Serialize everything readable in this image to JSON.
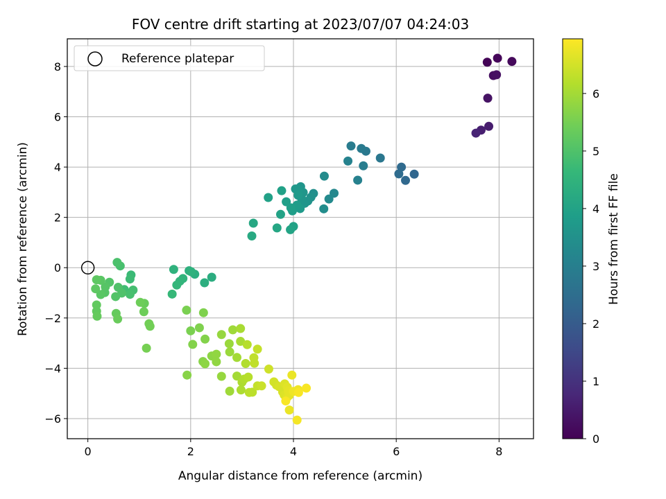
{
  "chart_data": {
    "type": "scatter",
    "title": "FOV centre drift starting at 2023/07/07 04:24:03",
    "xlabel": "Angular distance from reference (arcmin)",
    "ylabel": "Rotation from reference (arcmin)",
    "xlim": [
      -0.4,
      8.67
    ],
    "ylim": [
      -6.8,
      9.1
    ],
    "xticks": [
      0,
      2,
      4,
      6,
      8
    ],
    "yticks": [
      -6,
      -4,
      -2,
      0,
      2,
      4,
      6,
      8
    ],
    "grid": true,
    "legend_position": "top-left",
    "colormap": "viridis",
    "colorbar": {
      "label": "Hours from first FF file",
      "range": [
        0,
        6.95
      ],
      "ticks": [
        0,
        1,
        2,
        3,
        4,
        5,
        6
      ]
    },
    "reference": {
      "name": "Reference platepar",
      "x": 0,
      "y": 0
    },
    "series": [
      {
        "points": [
          [
            7.77,
            8.17,
            0.05
          ],
          [
            7.97,
            8.33,
            0.1
          ],
          [
            8.25,
            8.2,
            0.15
          ],
          [
            7.89,
            7.64,
            0.25
          ],
          [
            7.95,
            7.67,
            0.3
          ],
          [
            7.78,
            6.74,
            0.35
          ],
          [
            7.8,
            5.62,
            0.55
          ],
          [
            7.65,
            5.47,
            0.6
          ],
          [
            7.55,
            5.35,
            0.7
          ],
          [
            6.35,
            3.72,
            2.3
          ],
          [
            6.18,
            3.47,
            2.35
          ],
          [
            6.1,
            4.0,
            2.4
          ],
          [
            6.05,
            3.73,
            2.45
          ],
          [
            5.69,
            4.36,
            2.75
          ],
          [
            5.41,
            4.63,
            2.8
          ],
          [
            5.32,
            4.74,
            2.85
          ],
          [
            5.12,
            4.84,
            2.9
          ],
          [
            5.36,
            4.05,
            2.95
          ],
          [
            5.25,
            3.48,
            3.05
          ],
          [
            5.06,
            4.24,
            3.1
          ],
          [
            4.79,
            2.96,
            3.25
          ],
          [
            4.69,
            2.73,
            3.3
          ],
          [
            4.6,
            3.64,
            3.35
          ],
          [
            4.59,
            2.34,
            3.4
          ],
          [
            4.39,
            2.95,
            3.45
          ],
          [
            4.34,
            2.8,
            3.5
          ],
          [
            4.28,
            2.65,
            3.55
          ],
          [
            4.22,
            2.56,
            3.6
          ],
          [
            4.14,
            3.22,
            3.6
          ],
          [
            4.19,
            2.99,
            3.65
          ],
          [
            4.16,
            2.74,
            3.65
          ],
          [
            4.1,
            3.1,
            3.7
          ],
          [
            4.04,
            3.13,
            3.7
          ],
          [
            4.09,
            2.88,
            3.75
          ],
          [
            4.13,
            2.35,
            3.75
          ],
          [
            4.07,
            2.49,
            3.8
          ],
          [
            3.98,
            2.26,
            3.85
          ],
          [
            3.95,
            2.38,
            3.9
          ],
          [
            3.86,
            2.62,
            3.9
          ],
          [
            3.77,
            3.06,
            3.95
          ],
          [
            3.75,
            2.12,
            4.0
          ],
          [
            3.51,
            2.79,
            3.95
          ],
          [
            4.0,
            1.64,
            4.0
          ],
          [
            3.94,
            1.51,
            4.05
          ],
          [
            3.68,
            1.58,
            4.1
          ],
          [
            3.22,
            1.77,
            4.15
          ],
          [
            3.19,
            1.26,
            4.2
          ],
          [
            2.41,
            -0.38,
            4.3
          ],
          [
            2.27,
            -0.6,
            4.35
          ],
          [
            2.08,
            -0.26,
            4.35
          ],
          [
            1.97,
            -0.12,
            4.4
          ],
          [
            2.01,
            -0.16,
            4.45
          ],
          [
            1.67,
            -0.07,
            4.45
          ],
          [
            1.85,
            -0.43,
            4.5
          ],
          [
            1.79,
            -0.54,
            4.55
          ],
          [
            1.73,
            -0.69,
            4.6
          ],
          [
            1.64,
            -1.05,
            4.65
          ],
          [
            0.84,
            -0.29,
            4.7
          ],
          [
            0.82,
            -0.45,
            4.75
          ],
          [
            0.71,
            -0.87,
            4.8
          ],
          [
            0.88,
            -0.89,
            4.85
          ],
          [
            0.82,
            -1.06,
            4.9
          ],
          [
            0.63,
            0.07,
            4.9
          ],
          [
            0.57,
            0.21,
            4.95
          ],
          [
            0.59,
            -0.78,
            5.0
          ],
          [
            0.66,
            -1.01,
            5.0
          ],
          [
            0.54,
            -1.15,
            5.05
          ],
          [
            0.42,
            -0.58,
            5.05
          ],
          [
            0.34,
            -0.76,
            5.1
          ],
          [
            0.33,
            -0.99,
            5.1
          ],
          [
            0.25,
            -1.07,
            5.15
          ],
          [
            0.25,
            -0.5,
            5.15
          ],
          [
            0.15,
            -0.84,
            5.2
          ],
          [
            0.17,
            -0.48,
            5.2
          ],
          [
            0.17,
            -1.48,
            5.25
          ],
          [
            0.17,
            -1.73,
            5.25
          ],
          [
            0.18,
            -1.93,
            5.3
          ],
          [
            0.55,
            -1.82,
            5.3
          ],
          [
            0.58,
            -2.04,
            5.35
          ],
          [
            1.1,
            -1.42,
            5.35
          ],
          [
            1.02,
            -1.38,
            5.4
          ],
          [
            1.09,
            -1.75,
            5.4
          ],
          [
            1.19,
            -2.23,
            5.45
          ],
          [
            1.21,
            -2.33,
            5.45
          ],
          [
            1.14,
            -3.2,
            5.5
          ],
          [
            1.92,
            -1.69,
            5.55
          ],
          [
            2.0,
            -2.51,
            5.55
          ],
          [
            2.17,
            -2.39,
            5.6
          ],
          [
            2.25,
            -1.79,
            5.6
          ],
          [
            2.28,
            -2.84,
            5.65
          ],
          [
            2.04,
            -3.05,
            5.65
          ],
          [
            1.93,
            -4.27,
            5.7
          ],
          [
            2.24,
            -3.73,
            5.7
          ],
          [
            2.28,
            -3.82,
            5.75
          ],
          [
            2.41,
            -3.51,
            5.75
          ],
          [
            2.5,
            -3.44,
            5.8
          ],
          [
            2.5,
            -3.74,
            5.8
          ],
          [
            2.6,
            -4.32,
            5.85
          ],
          [
            2.6,
            -2.66,
            5.85
          ],
          [
            2.75,
            -3.02,
            5.9
          ],
          [
            2.76,
            -3.35,
            5.9
          ],
          [
            2.76,
            -4.91,
            5.95
          ],
          [
            2.82,
            -2.47,
            5.95
          ],
          [
            2.9,
            -3.57,
            6.0
          ],
          [
            2.9,
            -4.31,
            6.0
          ],
          [
            2.97,
            -2.42,
            6.05
          ],
          [
            2.97,
            -2.93,
            6.05
          ],
          [
            2.98,
            -4.86,
            6.1
          ],
          [
            3.0,
            -4.55,
            6.1
          ],
          [
            3.04,
            -4.43,
            6.15
          ],
          [
            3.07,
            -3.81,
            6.15
          ],
          [
            3.1,
            -3.06,
            6.2
          ],
          [
            3.12,
            -4.35,
            6.2
          ],
          [
            3.14,
            -4.96,
            6.25
          ],
          [
            3.2,
            -4.95,
            6.25
          ],
          [
            3.24,
            -3.8,
            6.3
          ],
          [
            3.23,
            -3.58,
            6.3
          ],
          [
            3.3,
            -3.24,
            6.35
          ],
          [
            3.3,
            -4.7,
            6.35
          ],
          [
            3.38,
            -4.7,
            6.4
          ],
          [
            3.52,
            -4.03,
            6.45
          ],
          [
            3.62,
            -4.54,
            6.5
          ],
          [
            3.67,
            -4.67,
            6.5
          ],
          [
            3.72,
            -4.73,
            6.55
          ],
          [
            3.79,
            -4.94,
            6.55
          ],
          [
            3.82,
            -5.06,
            6.6
          ],
          [
            3.83,
            -4.62,
            6.6
          ],
          [
            3.88,
            -5.15,
            6.65
          ],
          [
            3.88,
            -4.75,
            6.65
          ],
          [
            3.9,
            -4.9,
            6.7
          ],
          [
            3.92,
            -5.07,
            6.7
          ],
          [
            3.92,
            -5.66,
            6.75
          ],
          [
            3.97,
            -4.27,
            6.75
          ],
          [
            4.0,
            -4.92,
            6.8
          ],
          [
            4.09,
            -4.85,
            6.8
          ],
          [
            4.07,
            -6.06,
            6.85
          ],
          [
            4.25,
            -4.79,
            6.9
          ],
          [
            4.1,
            -4.96,
            6.9
          ],
          [
            3.85,
            -5.3,
            6.9
          ]
        ]
      }
    ]
  },
  "colors": {
    "grid": "#b0b0b0",
    "axes": "#000000",
    "legend_border": "#cccccc"
  }
}
